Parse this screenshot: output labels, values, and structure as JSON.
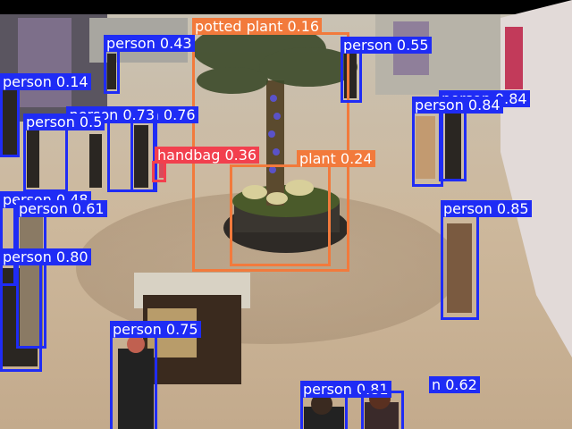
{
  "colors": {
    "person": "#1f2cf5",
    "potted plant": "#f27a3c",
    "handbag": "#f2404e"
  },
  "detections": [
    {
      "label": "potted plant 0.16",
      "cls": "potted plant"
    },
    {
      "label": "person 0.43",
      "cls": "person"
    },
    {
      "label": "person 0.55",
      "cls": "person"
    },
    {
      "label": "person 0.14",
      "cls": "person"
    },
    {
      "label": "person 0.84",
      "cls": "person"
    },
    {
      "label": "person 0.84",
      "cls": "person"
    },
    {
      "label": "person 0.76",
      "cls": "person"
    },
    {
      "label": "person 0.73",
      "cls": "person"
    },
    {
      "label": "person 0.5",
      "cls": "person"
    },
    {
      "label": "handbag 0.36",
      "cls": "handbag"
    },
    {
      "label": "plant 0.24",
      "cls": "potted plant"
    },
    {
      "label": "person 0.48",
      "cls": "person"
    },
    {
      "label": "person 0.61",
      "cls": "person"
    },
    {
      "label": "person 0.85",
      "cls": "person"
    },
    {
      "label": "person 0.80",
      "cls": "person"
    },
    {
      "label": "person 0.75",
      "cls": "person"
    },
    {
      "label": "person 0.81",
      "cls": "person"
    },
    {
      "label": "n 0.62",
      "cls": "person"
    }
  ]
}
